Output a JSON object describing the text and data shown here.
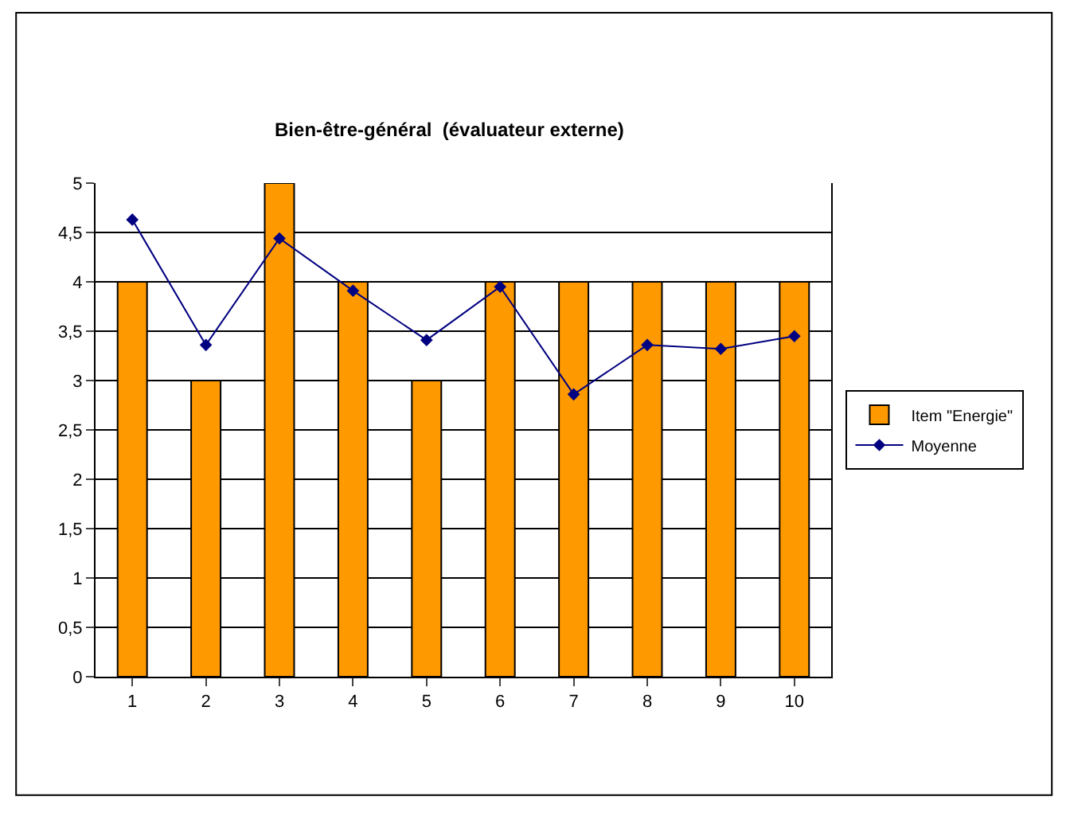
{
  "chart_data": {
    "type": "bar",
    "title": "Bien-être-général  (évaluateur externe)",
    "categories": [
      "1",
      "2",
      "3",
      "4",
      "5",
      "6",
      "7",
      "8",
      "9",
      "10"
    ],
    "series": [
      {
        "name": "Item \"Energie\"",
        "color": "#ff9900",
        "values": [
          4,
          3,
          5,
          4,
          3,
          4,
          4,
          4,
          4,
          4
        ]
      },
      {
        "name": "Moyenne",
        "type": "line",
        "color": "#000080",
        "marker": "diamond",
        "values": [
          4.63,
          3.36,
          4.44,
          3.91,
          3.41,
          3.95,
          2.86,
          3.36,
          3.32,
          3.45
        ]
      }
    ],
    "ylim": [
      0,
      5
    ],
    "yticks": [
      0,
      {
        "value": 0.5,
        "label": "0,5"
      },
      1,
      {
        "value": 1.5,
        "label": "1,5"
      },
      2,
      {
        "value": 2.5,
        "label": "2,5"
      },
      3,
      {
        "value": 3.5,
        "label": "3,5"
      },
      4,
      {
        "value": 4.5,
        "label": "4,5"
      },
      5
    ],
    "grid": "y",
    "legend": "right"
  }
}
